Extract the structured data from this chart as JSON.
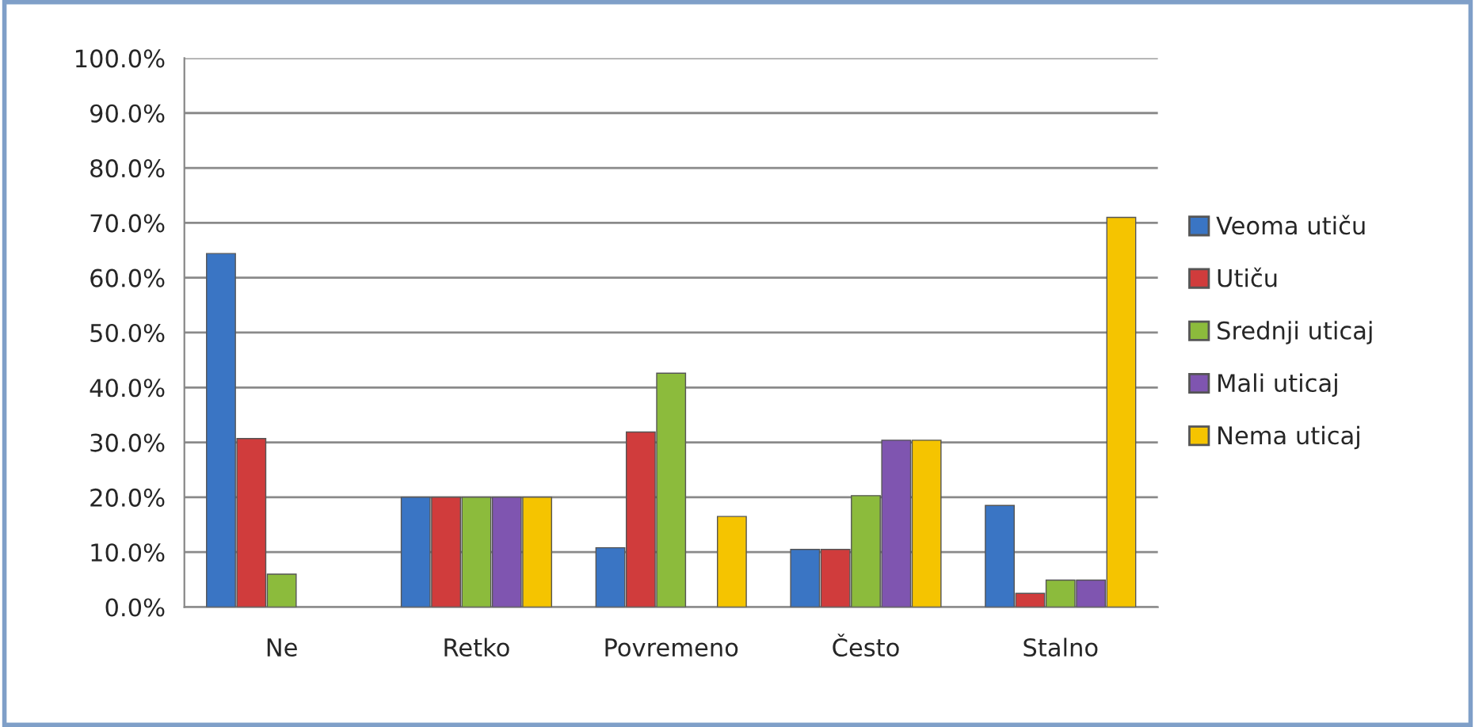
{
  "chart_data": {
    "type": "bar",
    "categories": [
      "Ne",
      "Retko",
      "Povremeno",
      "Često",
      "Stalno"
    ],
    "series": [
      {
        "name": "Veoma utiču",
        "color": "#3a75c4",
        "values": [
          64.4,
          20.0,
          10.8,
          10.5,
          18.5
        ]
      },
      {
        "name": "Utiču",
        "color": "#d03c3c",
        "values": [
          30.7,
          20.0,
          31.9,
          10.5,
          2.5
        ]
      },
      {
        "name": "Srednji uticaj",
        "color": "#8cbb3c",
        "values": [
          6.0,
          20.0,
          42.6,
          20.3,
          4.9
        ]
      },
      {
        "name": "Mali uticaj",
        "color": "#7f55b0",
        "values": [
          null,
          20.0,
          null,
          30.4,
          4.9
        ]
      },
      {
        "name": "Nema uticaj",
        "color": "#f5c400",
        "values": [
          null,
          20.0,
          16.5,
          30.4,
          71.0
        ]
      }
    ],
    "ylim": [
      0,
      100
    ],
    "yticks": [
      {
        "value": 0,
        "label": "0.0%"
      },
      {
        "value": 10,
        "label": "10.0%"
      },
      {
        "value": 20,
        "label": "20.0%"
      },
      {
        "value": 30,
        "label": "30.0%"
      },
      {
        "value": 40,
        "label": "40.0%"
      },
      {
        "value": 50,
        "label": "50.0%"
      },
      {
        "value": 60,
        "label": "60.0%"
      },
      {
        "value": 70,
        "label": "70.0%"
      },
      {
        "value": 80,
        "label": "80.0%"
      },
      {
        "value": 90,
        "label": "90.0%"
      },
      {
        "value": 100,
        "label": "100.0%"
      }
    ],
    "grid": "y",
    "legend": "right"
  }
}
